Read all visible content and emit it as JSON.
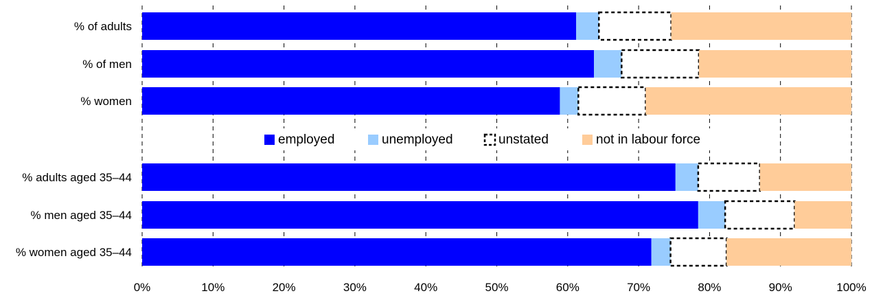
{
  "chart_data": {
    "type": "bar",
    "orientation": "horizontal",
    "stacked": true,
    "categories": [
      "% of adults",
      "% of men",
      "% women",
      "% adults aged 35–44",
      "% men aged 35–44",
      "% women aged 35–44"
    ],
    "series": [
      {
        "name": "employed",
        "color": "#0000ff",
        "style": "solid",
        "values": [
          61.2,
          63.7,
          58.9,
          75.2,
          78.4,
          71.8
        ]
      },
      {
        "name": "unemployed",
        "color": "#99ccff",
        "style": "solid",
        "values": [
          3.2,
          3.9,
          2.6,
          3.2,
          3.8,
          2.7
        ]
      },
      {
        "name": "unstated",
        "color": "#ffffff",
        "style": "dashed-outline",
        "values": [
          10.2,
          10.9,
          9.5,
          8.7,
          9.8,
          7.9
        ]
      },
      {
        "name": "not in labour force",
        "color": "#ffcc99",
        "style": "solid",
        "values": [
          25.4,
          21.5,
          29.0,
          12.9,
          8.0,
          17.6
        ]
      }
    ],
    "x_ticks": [
      "0%",
      "10%",
      "20%",
      "30%",
      "40%",
      "50%",
      "60%",
      "70%",
      "80%",
      "90%",
      "100%"
    ],
    "xlim": [
      0,
      100
    ],
    "grid": "vertical dashed",
    "legend_position": "center, between the two groups",
    "title": "",
    "xlabel": "",
    "ylabel": ""
  }
}
